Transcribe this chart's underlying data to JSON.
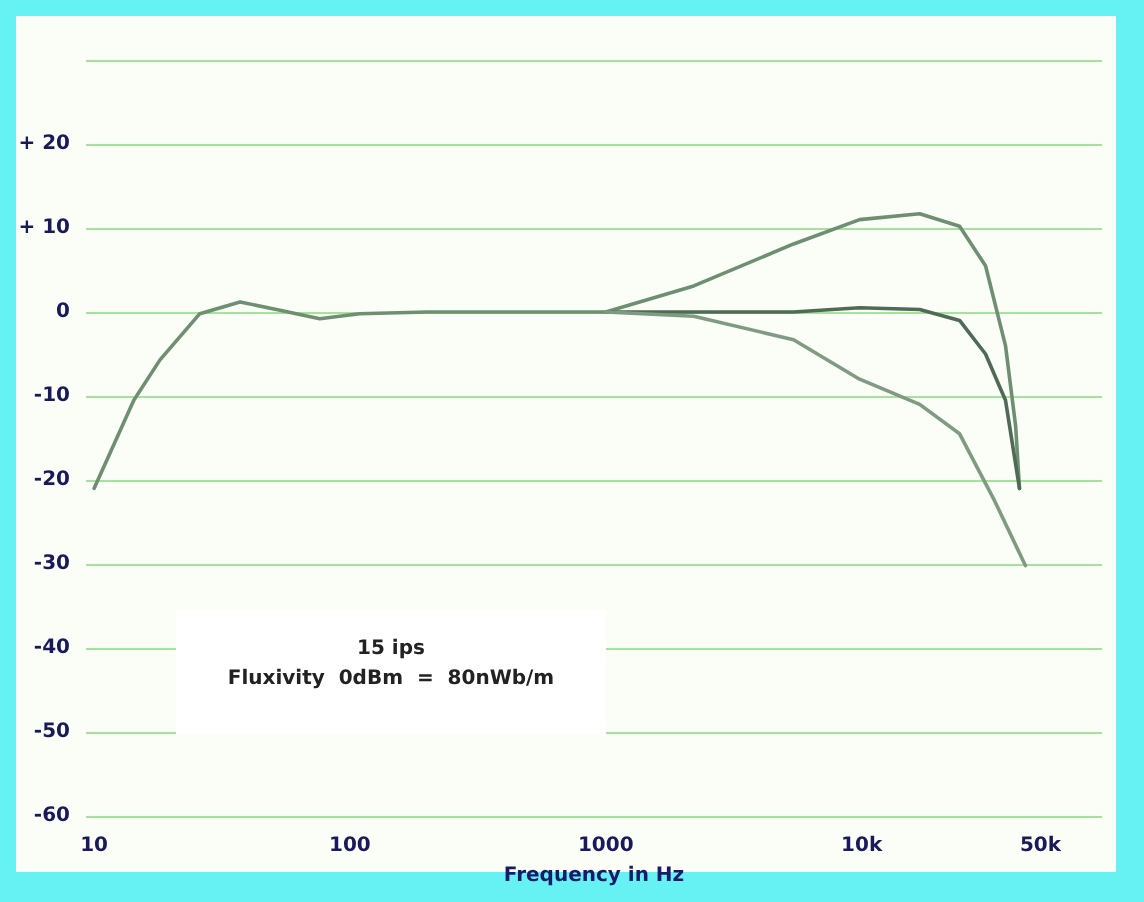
{
  "chart_data": {
    "type": "line",
    "xlabel": "Frequency in Hz",
    "log": "x",
    "xlim": [
      9.3,
      87000
    ],
    "ylim": [
      -60,
      30
    ],
    "xticks": [
      10,
      100,
      1000,
      {
        "value": 10000,
        "label": "10k"
      },
      {
        "value": 50000,
        "label": "50k"
      }
    ],
    "yticks": [
      -60,
      -50,
      -40,
      -30,
      -20,
      -10,
      0,
      {
        "value": 10,
        "label": "+ 10"
      },
      {
        "value": 20,
        "label": "+ 20"
      },
      {
        "value": 30,
        "label": null
      }
    ],
    "grid": "y",
    "marker": "none",
    "line_style": "solid",
    "annotations": [
      "15 ips",
      "Fluxivity  0dBm  =  80nWb/m"
    ],
    "series": [
      {
        "color": "#6f8f72",
        "x": [
          10,
          14.3,
          18.1,
          25.9,
          37.2,
          53.3,
          76.2,
          109,
          200,
          500,
          1000,
          2207,
          5420,
          9820,
          16860,
          24150,
          30500,
          36500,
          40000,
          41400
        ],
        "values": [
          -21,
          -10.5,
          -5.7,
          -0.2,
          1.2,
          0.2,
          -0.8,
          -0.2,
          0,
          0,
          0,
          3.1,
          8.1,
          11,
          11.7,
          10.2,
          5.5,
          -4,
          -13.6,
          -21
        ]
      },
      {
        "color": "#4f6b55",
        "x": [
          1000,
          2207,
          5420,
          9820,
          16860,
          24150,
          30500,
          36500,
          41400
        ],
        "values": [
          0,
          0,
          0,
          0.5,
          0.3,
          -1,
          -5,
          -10.5,
          -21
        ]
      },
      {
        "color": "#7f9c82",
        "x": [
          1000,
          2207,
          5420,
          9820,
          16860,
          24150,
          33000,
          43700
        ],
        "values": [
          0,
          -0.5,
          -3.3,
          -8,
          -11,
          -14.5,
          -22.4,
          -30.2
        ]
      }
    ]
  }
}
